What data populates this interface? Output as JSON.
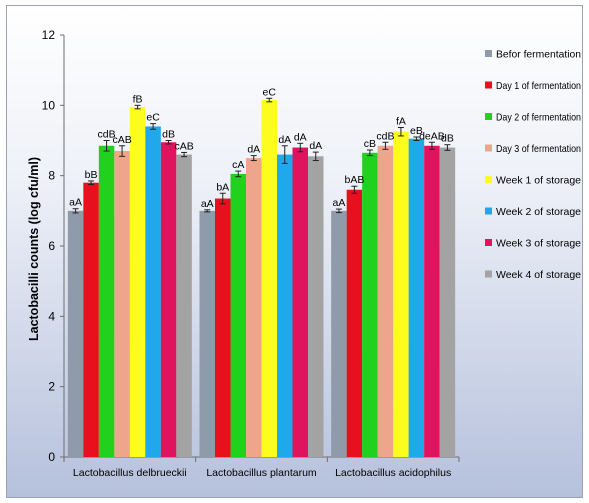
{
  "chart_data": {
    "type": "bar",
    "ylabel": "Lactobacilli counts (log cfu/ml)",
    "ylim": [
      0,
      12
    ],
    "yticks": [
      "0",
      "2",
      "4",
      "6",
      "8",
      "10",
      "12"
    ],
    "grid": false,
    "legend_position": "right",
    "categories": [
      "Lactobacillus delbrueckii",
      "Lactobacillus plantarum",
      "Lactobacillus acidophilus"
    ],
    "series": [
      {
        "name": "Befor fermentation",
        "color": "#8f9aaa",
        "values": [
          7.0,
          7.0,
          7.0
        ],
        "errors": [
          0.06,
          0.03,
          0.05
        ],
        "labels": [
          "aA",
          "aA",
          "aA"
        ]
      },
      {
        "name": "Day 1 of fermentation",
        "color": "#e8101c",
        "values": [
          7.8,
          7.35,
          7.6
        ],
        "errors": [
          0.05,
          0.15,
          0.1
        ],
        "labels": [
          "bB",
          "bA",
          "bAB"
        ]
      },
      {
        "name": "Day 2 of fermentation",
        "color": "#22d11e",
        "values": [
          8.85,
          8.05,
          8.65
        ],
        "errors": [
          0.15,
          0.08,
          0.08
        ],
        "labels": [
          "cdB",
          "cA",
          "cB"
        ]
      },
      {
        "name": "Day 3 of fermentation",
        "color": "#eea58c",
        "values": [
          8.7,
          8.5,
          8.85
        ],
        "errors": [
          0.15,
          0.07,
          0.1
        ],
        "labels": [
          "cAB",
          "dA",
          "cdB"
        ]
      },
      {
        "name": "Week 1 of storage",
        "color": "#fcfc1e",
        "values": [
          9.95,
          10.15,
          9.25
        ],
        "errors": [
          0.05,
          0.05,
          0.12
        ],
        "labels": [
          "fB",
          "eC",
          "fA"
        ]
      },
      {
        "name": "Week 2 of storage",
        "color": "#1fa9ea",
        "values": [
          9.4,
          8.6,
          9.05
        ],
        "errors": [
          0.08,
          0.25,
          0.05
        ],
        "labels": [
          "eC",
          "dA",
          "eB"
        ]
      },
      {
        "name": "Week 3 of storage",
        "color": "#e0145e",
        "values": [
          8.95,
          8.8,
          8.85
        ],
        "errors": [
          0.05,
          0.12,
          0.1
        ],
        "labels": [
          "dB",
          "dA",
          "deAB"
        ]
      },
      {
        "name": "Week 4 of storage",
        "color": "#a3a3a3",
        "values": [
          8.6,
          8.55,
          8.8
        ],
        "errors": [
          0.06,
          0.12,
          0.08
        ],
        "labels": [
          "cAB",
          "dA",
          "dB"
        ]
      }
    ]
  }
}
